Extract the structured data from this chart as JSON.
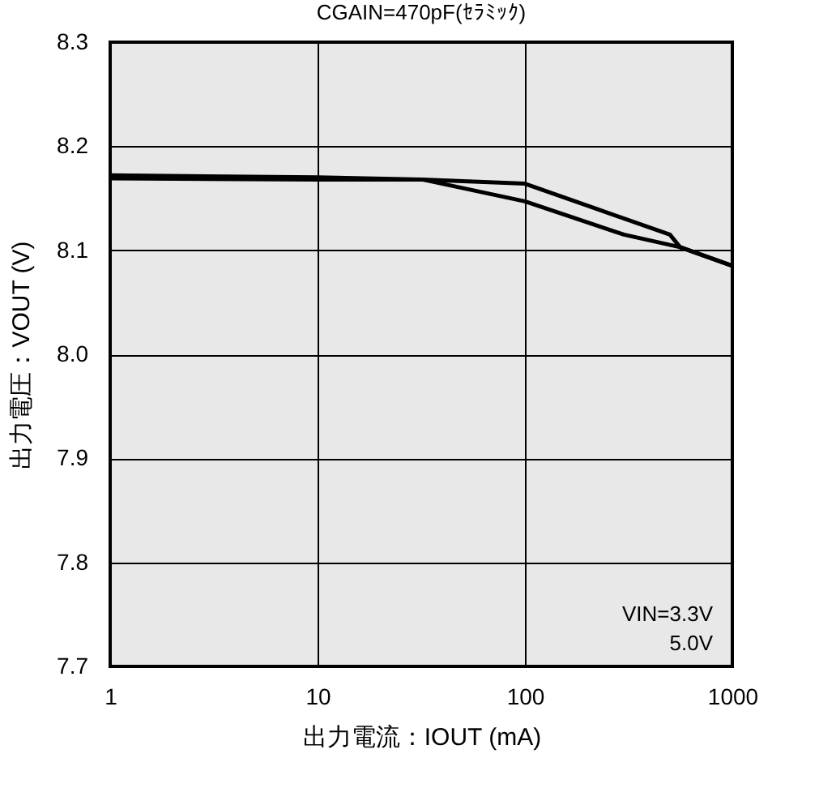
{
  "chart_data": {
    "type": "line",
    "title": "CGAIN=470pF(ｾﾗﾐｯｸ)",
    "xlabel": "出力電流：IOUT (mA)",
    "ylabel": "出力電圧：VOUT (V)",
    "series": [
      {
        "color": "#000000",
        "x": [
          1,
          10,
          32,
          100,
          500,
          560,
          1000
        ],
        "values": [
          8.172,
          8.17,
          8.168,
          8.164,
          8.115,
          8.103,
          8.085
        ]
      },
      {
        "color": "#000000",
        "x": [
          1,
          10,
          32,
          100,
          300,
          560,
          1000
        ],
        "values": [
          8.169,
          8.168,
          8.168,
          8.147,
          8.115,
          8.103,
          8.085
        ]
      }
    ],
    "annotations": [
      "VIN=3.3V",
      "5.0V"
    ],
    "log": "x",
    "xlim": [
      1,
      1000
    ],
    "xticks": [
      1,
      10,
      100,
      1000
    ],
    "ylim": [
      7.7,
      8.3
    ],
    "yticks": [
      7.7,
      7.8,
      7.9,
      {
        "value": 8.0,
        "label": "8.0"
      },
      8.1,
      8.2,
      8.3
    ],
    "grid": true,
    "marker": "none",
    "line_style": "solid"
  }
}
